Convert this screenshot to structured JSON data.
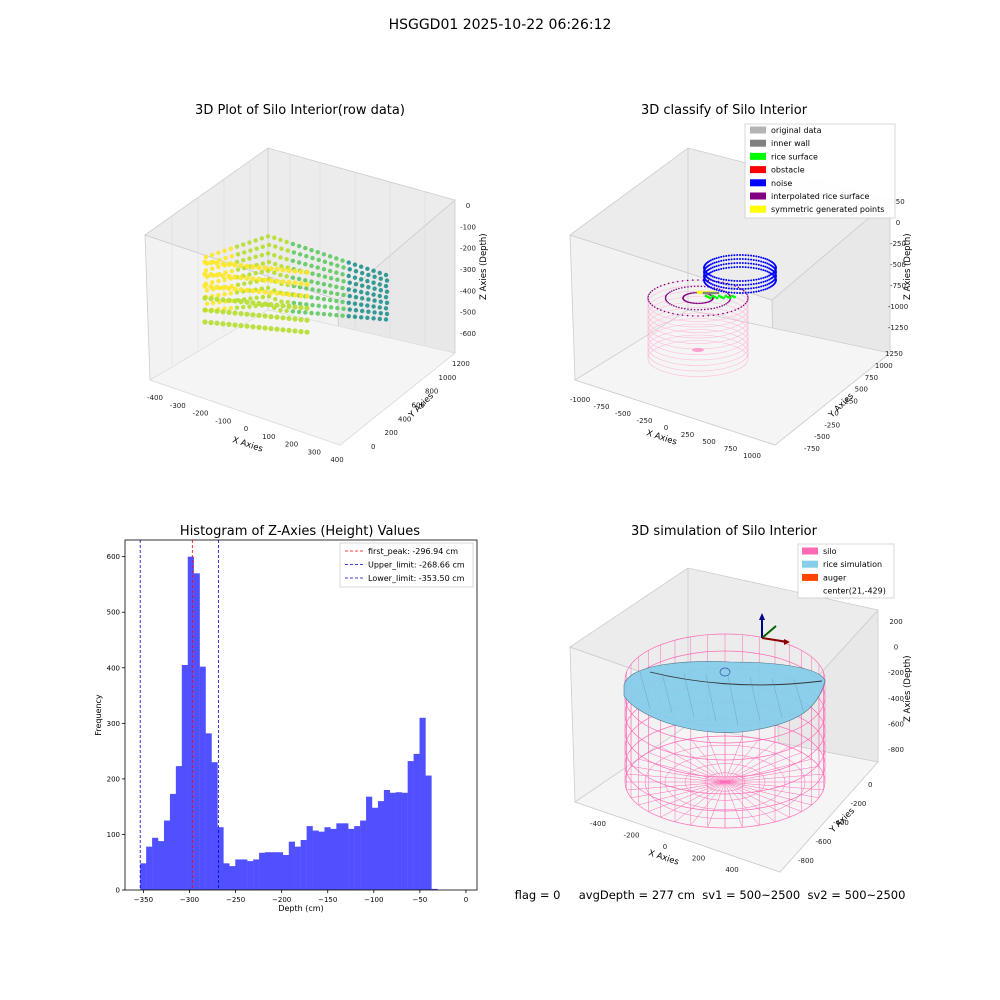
{
  "suptitle": "HSGGD01 2025-10-22 06:26:12",
  "status_text": "flag = 0     avgDepth = 277 cm  sv1 = 500~2500  sv2 = 500~2500",
  "colors": {
    "noise": "#0000ff",
    "rice_surface": "#00ff00",
    "inner_wall": "#808080",
    "obstacle": "#ff0000",
    "original": "#b3b3b3",
    "interpolated": "#800080",
    "symmetric": "#ffff00",
    "silo": "#ff69b4",
    "rice_sim": "#87ceeb",
    "auger": "#ff4500",
    "hist_bar": "#5050ff"
  },
  "chart_data": [
    {
      "type": "scatter",
      "title": "3D Plot of Silo Interior(row data)",
      "xlabel": "X Axies",
      "ylabel": "Y Axies",
      "zlabel": "Z Axies (Depth)",
      "xticks": [
        "-400",
        "-300",
        "-200",
        "-100",
        "0",
        "100",
        "200",
        "300",
        "400"
      ],
      "yticks": [
        "0",
        "200",
        "400",
        "600",
        "800",
        "1000",
        "1200"
      ],
      "zticks": [
        "0",
        "-100",
        "-200",
        "-300",
        "-400",
        "-500",
        "-600"
      ],
      "colormap": "viridis"
    },
    {
      "type": "scatter",
      "title": "3D classify of Silo Interior",
      "xlabel": "X Axies",
      "ylabel": "Y Axies",
      "zlabel": "Z Axies (Depth)",
      "xticks": [
        "-1000",
        "-750",
        "-500",
        "-250",
        "0",
        "250",
        "500",
        "750",
        "1000"
      ],
      "yticks": [
        "-750",
        "-500",
        "-250",
        "0",
        "250",
        "500",
        "750",
        "1000",
        "1250"
      ],
      "zticks": [
        "250",
        "0",
        "-250",
        "-500",
        "-750",
        "-1000",
        "-1250"
      ],
      "legend": [
        "original data",
        "inner wall",
        "rice surface",
        "obstacle",
        "noise",
        "interpolated rice surface",
        "symmetric generated points"
      ],
      "legend_placement": "top-right"
    },
    {
      "type": "bar",
      "title": "Histogram of Z-Axies (Height) Values",
      "xlabel": "Depth (cm)",
      "ylabel": "Frequency",
      "xlim": [
        -370,
        12
      ],
      "ylim": [
        0,
        630
      ],
      "xticks": [
        -350,
        -300,
        -250,
        -200,
        -150,
        -100,
        -50,
        0
      ],
      "yticks": [
        0,
        100,
        200,
        300,
        400,
        500,
        600
      ],
      "bin_start": -353.5,
      "bin_width": 6.45,
      "values": [
        48,
        78,
        94,
        88,
        125,
        173,
        223,
        405,
        600,
        570,
        402,
        282,
        230,
        113,
        48,
        43,
        55,
        55,
        52,
        55,
        67,
        68,
        68,
        68,
        63,
        87,
        78,
        90,
        115,
        107,
        105,
        113,
        110,
        120,
        120,
        110,
        115,
        125,
        168,
        148,
        160,
        180,
        175,
        176,
        175,
        232,
        245,
        310,
        206,
        2
      ],
      "lines": [
        {
          "label": "first_peak: -296.94 cm",
          "x": -296.94,
          "color": "#ff0000"
        },
        {
          "label": "Upper_limit: -268.66 cm",
          "x": -268.66,
          "color": "#0000cc"
        },
        {
          "label": "Lower_limit: -353.50 cm",
          "x": -353.5,
          "color": "#0000cc"
        }
      ],
      "legend_placement": "top-right"
    },
    {
      "type": "surface",
      "title": "3D simulation of Silo Interior",
      "xlabel": "X Axies",
      "ylabel": "Y Axies",
      "zlabel": "Z Axies (Depth)",
      "xticks": [
        "-400",
        "-200",
        "0",
        "200",
        "400"
      ],
      "yticks": [
        "-800",
        "-600",
        "-400",
        "-200",
        "0"
      ],
      "zticks": [
        "200",
        "0",
        "-200",
        "-400",
        "-600",
        "-800"
      ],
      "legend": [
        "silo",
        "rice simulation",
        "auger",
        "center(21,-429)"
      ],
      "legend_placement": "top-right"
    }
  ]
}
